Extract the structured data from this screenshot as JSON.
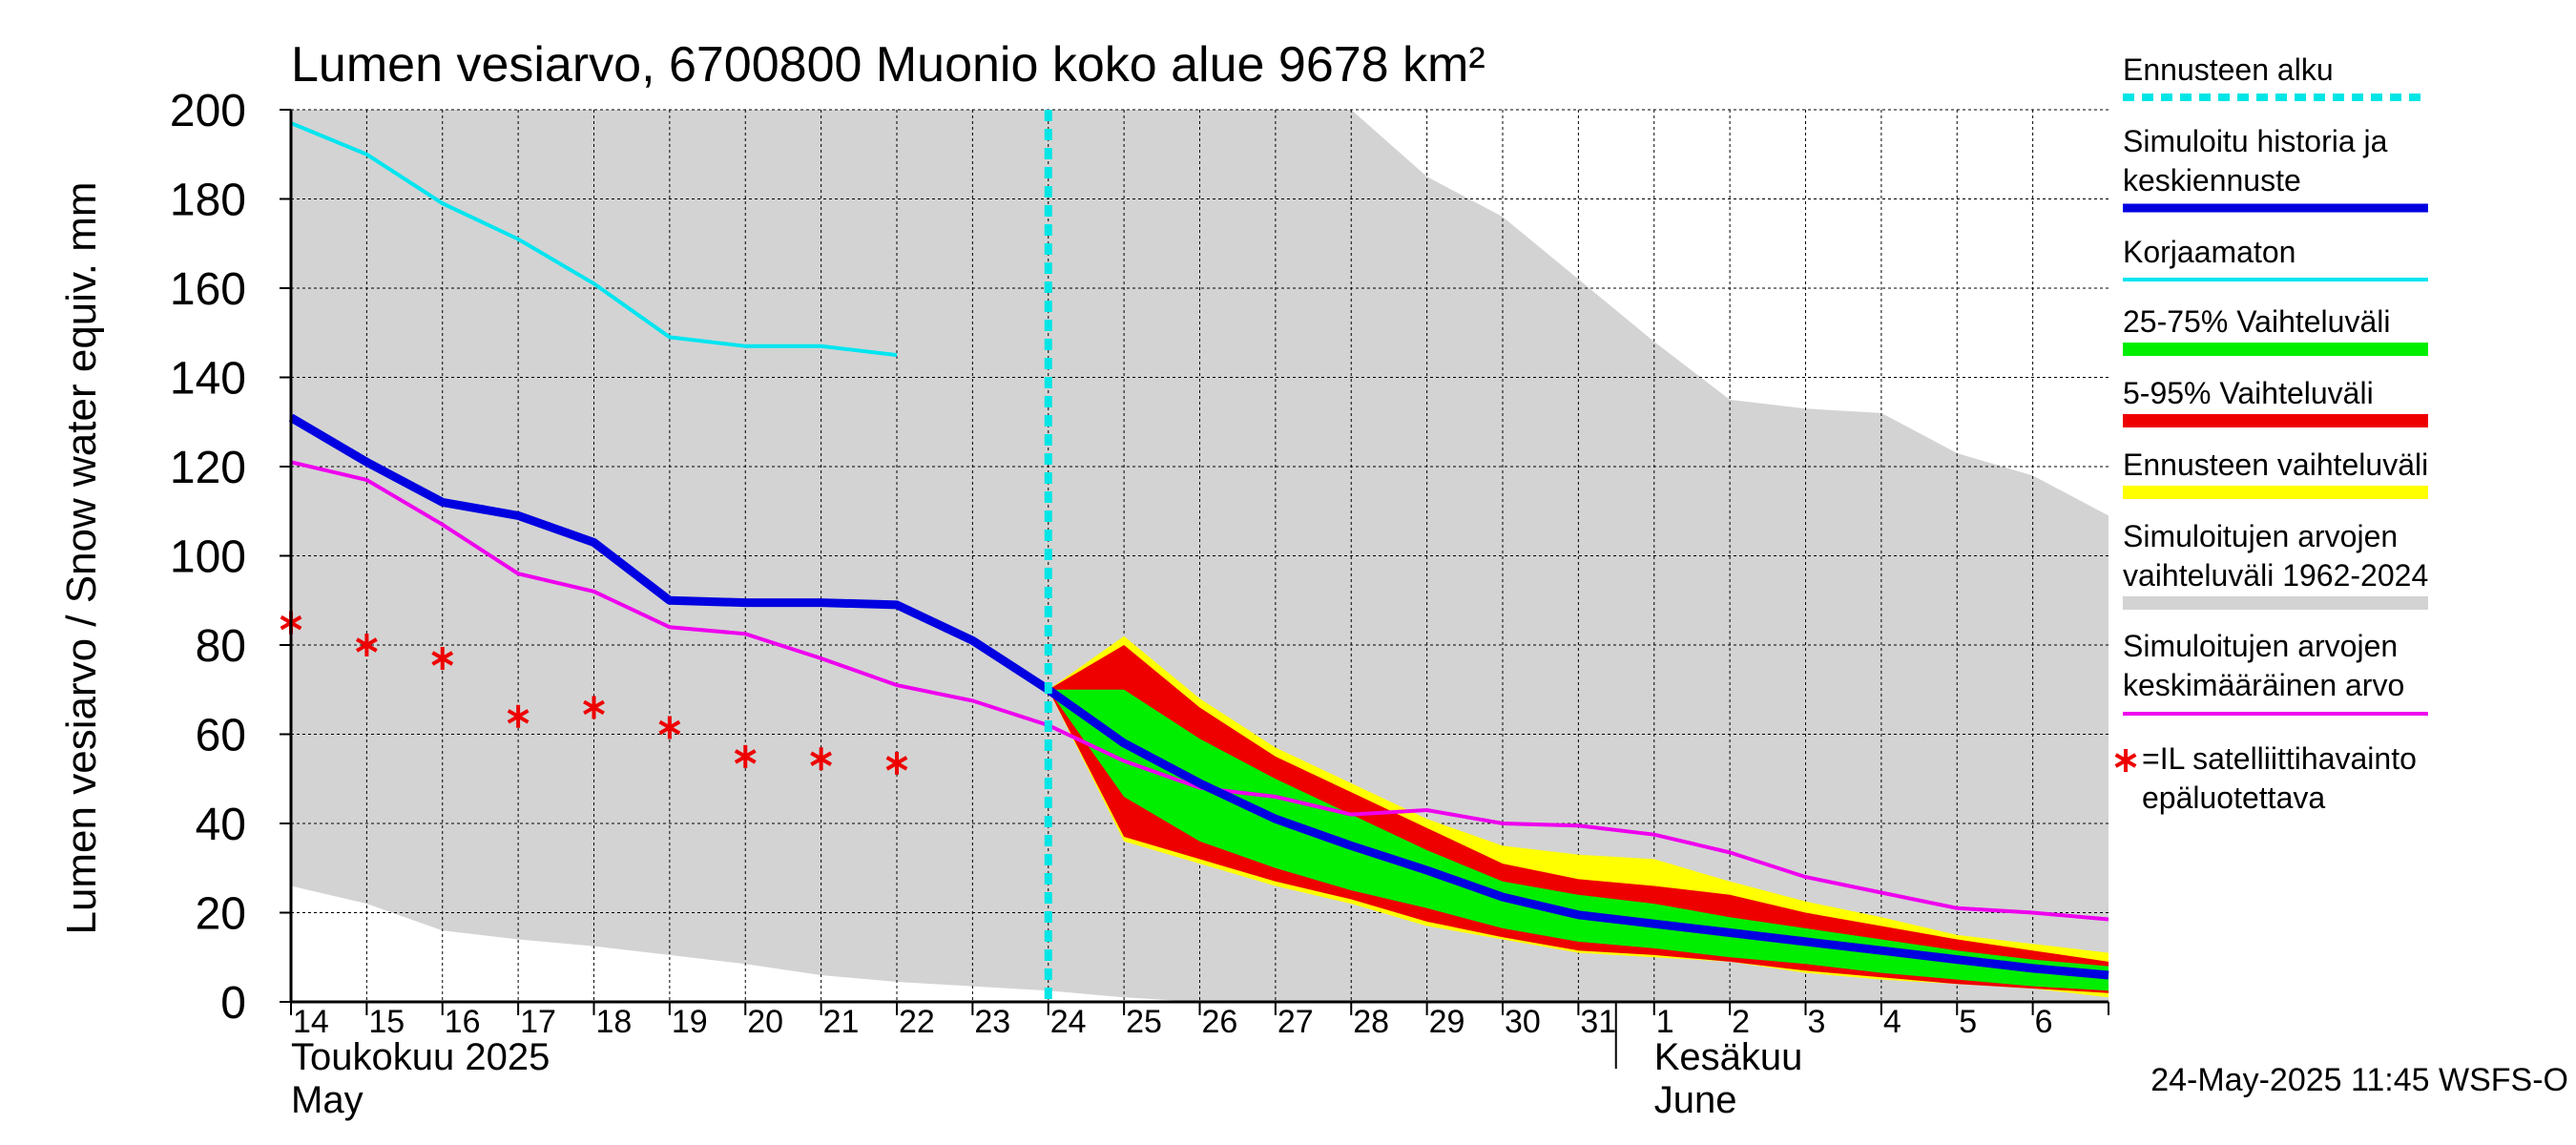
{
  "chart_data": {
    "type": "area",
    "title": "Lumen vesiarvo, 6700800 Muonio koko alue 9678 km²",
    "ylabel": "Lumen vesiarvo / Snow water equiv.    mm",
    "ylim": [
      0,
      200
    ],
    "yticks": [
      0,
      20,
      40,
      60,
      80,
      100,
      120,
      140,
      160,
      180,
      200
    ],
    "grid": true,
    "legend_position": "right",
    "x_start": "2025-05-14",
    "x_end": "2025-06-07",
    "day_labels": [
      "14",
      "15",
      "16",
      "17",
      "18",
      "19",
      "20",
      "21",
      "22",
      "23",
      "24",
      "25",
      "26",
      "27",
      "28",
      "29",
      "30",
      "31",
      "1",
      "2",
      "3",
      "4",
      "5",
      "6"
    ],
    "month_labels": [
      {
        "date": "2025-05-14",
        "fi": "Toukokuu  2025",
        "en": "May"
      },
      {
        "date": "2025-06-01",
        "fi": "Kesäkuu",
        "en": "June"
      }
    ],
    "forecast_start": "2025-05-24",
    "timestamp": "24-May-2025 11:45 WSFS-O",
    "colors": {
      "forecast_start": "#00e5e5",
      "simulated": "#0000e0",
      "uncorrected": "#00e5f0",
      "range_25_75": "#00ee00",
      "range_5_95": "#ee0000",
      "forecast_range": "#ffff00",
      "historical_range": "#d3d3d3",
      "historical_mean": "#ee00ee",
      "satellite": "#ee0000"
    },
    "legend": [
      {
        "key": "forecast_start",
        "lines": [
          "Ennusteen alku"
        ],
        "style": "dashed"
      },
      {
        "key": "simulated",
        "lines": [
          "Simuloitu historia ja",
          "keskiennuste"
        ],
        "style": "line"
      },
      {
        "key": "uncorrected",
        "lines": [
          "Korjaamaton"
        ],
        "style": "thin"
      },
      {
        "key": "range_25_75",
        "lines": [
          "25-75% Vaihteluväli"
        ],
        "style": "band"
      },
      {
        "key": "range_5_95",
        "lines": [
          "5-95% Vaihteluväli"
        ],
        "style": "band"
      },
      {
        "key": "forecast_range",
        "lines": [
          "Ennusteen vaihteluväli"
        ],
        "style": "band"
      },
      {
        "key": "historical_range",
        "lines": [
          "Simuloitujen arvojen",
          "vaihteluväli 1962-2024"
        ],
        "style": "band"
      },
      {
        "key": "historical_mean",
        "lines": [
          "Simuloitujen arvojen",
          "keskimääräinen arvo"
        ],
        "style": "thin"
      },
      {
        "key": "satellite",
        "lines": [
          "=IL satelliittihavainto",
          "epäluotettava"
        ],
        "style": "star"
      }
    ],
    "historical_range": {
      "x": [
        "2025-05-14",
        "2025-05-15",
        "2025-05-16",
        "2025-05-17",
        "2025-05-18",
        "2025-05-19",
        "2025-05-20",
        "2025-05-21",
        "2025-05-22",
        "2025-05-23",
        "2025-05-24",
        "2025-05-25",
        "2025-05-26",
        "2025-05-27",
        "2025-05-28",
        "2025-05-29",
        "2025-05-30",
        "2025-05-31",
        "2025-06-01",
        "2025-06-02",
        "2025-06-03",
        "2025-06-04",
        "2025-06-05",
        "2025-06-06",
        "2025-06-07"
      ],
      "upper": [
        200,
        200,
        200,
        200,
        200,
        200,
        200,
        200,
        200,
        200,
        200,
        200,
        200,
        200,
        200,
        185,
        176,
        162,
        148,
        135,
        133,
        132,
        123,
        118,
        109
      ],
      "lower": [
        26,
        22,
        16,
        14,
        12.5,
        10.5,
        8.5,
        6,
        4.5,
        3.5,
        2.5,
        1,
        0,
        0,
        0,
        0,
        0,
        0,
        0,
        0,
        0,
        0,
        0,
        0,
        0
      ]
    },
    "historical_mean": {
      "x": [
        "2025-05-14",
        "2025-05-15",
        "2025-05-16",
        "2025-05-17",
        "2025-05-18",
        "2025-05-19",
        "2025-05-20",
        "2025-05-21",
        "2025-05-22",
        "2025-05-23",
        "2025-05-24",
        "2025-05-25",
        "2025-05-26",
        "2025-05-27",
        "2025-05-28",
        "2025-05-29",
        "2025-05-30",
        "2025-05-31",
        "2025-06-01",
        "2025-06-02",
        "2025-06-03",
        "2025-06-04",
        "2025-06-05",
        "2025-06-06",
        "2025-06-07"
      ],
      "values": [
        121,
        117,
        107,
        96,
        92,
        84,
        82.5,
        77,
        71,
        67.5,
        62,
        54,
        48,
        46,
        42,
        43,
        40,
        39.5,
        37.5,
        33.5,
        28,
        24.5,
        21,
        20,
        18.5
      ]
    },
    "uncorrected": {
      "x": [
        "2025-05-14",
        "2025-05-15",
        "2025-05-16",
        "2025-05-17",
        "2025-05-18",
        "2025-05-19",
        "2025-05-20",
        "2025-05-21",
        "2025-05-22"
      ],
      "values": [
        197,
        190,
        179,
        171,
        161,
        149,
        147,
        147,
        145
      ]
    },
    "simulated": {
      "x": [
        "2025-05-14",
        "2025-05-15",
        "2025-05-16",
        "2025-05-17",
        "2025-05-18",
        "2025-05-19",
        "2025-05-20",
        "2025-05-21",
        "2025-05-22",
        "2025-05-23",
        "2025-05-24",
        "2025-05-25",
        "2025-05-26",
        "2025-05-27",
        "2025-05-28",
        "2025-05-29",
        "2025-05-30",
        "2025-05-31",
        "2025-06-01",
        "2025-06-02",
        "2025-06-03",
        "2025-06-04",
        "2025-06-05",
        "2025-06-06",
        "2025-06-07"
      ],
      "values": [
        131,
        121,
        112,
        109,
        103,
        90,
        89.5,
        89.5,
        89,
        81,
        70,
        58,
        49,
        41,
        35,
        29.5,
        23.5,
        19.5,
        17.5,
        15.5,
        13.5,
        11.5,
        9.5,
        7.5,
        6
      ]
    },
    "forecast_bands": {
      "x": [
        "2025-05-24",
        "2025-05-25",
        "2025-05-26",
        "2025-05-27",
        "2025-05-28",
        "2025-05-29",
        "2025-05-30",
        "2025-05-31",
        "2025-06-01",
        "2025-06-02",
        "2025-06-03",
        "2025-06-04",
        "2025-06-05",
        "2025-06-06",
        "2025-06-07"
      ],
      "max": [
        70,
        82,
        68,
        57,
        49,
        41,
        35,
        33,
        32,
        27,
        22.5,
        19,
        15,
        13,
        11
      ],
      "p95": [
        70,
        80,
        66,
        55,
        47,
        39,
        31,
        27.5,
        26,
        24,
        20,
        17,
        14,
        11.5,
        9
      ],
      "p75": [
        70,
        70,
        59,
        50,
        42,
        34,
        27,
        24,
        22,
        19,
        16.5,
        14,
        11.5,
        9.5,
        8
      ],
      "p25": [
        70,
        46,
        36,
        30,
        25,
        21,
        16.5,
        13.5,
        12,
        10,
        8.5,
        6.5,
        5,
        3.5,
        2.5
      ],
      "p5": [
        70,
        37,
        32,
        27,
        23,
        18,
        14.5,
        11.5,
        10.5,
        9,
        7,
        5.5,
        4,
        3,
        2
      ],
      "min": [
        70,
        36,
        31,
        26,
        22,
        17,
        14,
        11,
        10,
        9,
        6.5,
        5,
        4,
        3,
        1
      ]
    },
    "satellite": {
      "x": [
        "2025-05-14",
        "2025-05-15",
        "2025-05-16",
        "2025-05-17",
        "2025-05-18",
        "2025-05-19",
        "2025-05-20",
        "2025-05-21",
        "2025-05-22"
      ],
      "values": [
        85,
        80,
        77,
        64,
        66,
        61.5,
        55,
        54.5,
        53.5
      ]
    }
  }
}
